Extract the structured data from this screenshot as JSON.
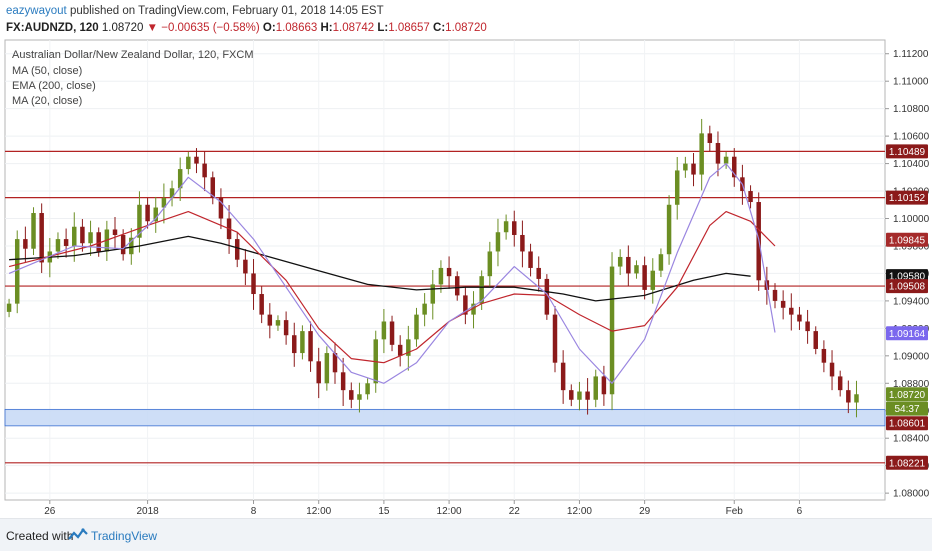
{
  "header": {
    "author": "eazywayout",
    "published_text": "published on TradingView.com, February 01, 2018 14:05 EST",
    "symbol": "FX:AUDNZD, 120",
    "last": "1.08720",
    "change_arrow": "▼",
    "change": "−0.00635 (−0.58%)",
    "open_label": "O:",
    "open": "1.08663",
    "high_label": "H:",
    "high": "1.08742",
    "low_label": "L:",
    "low": "1.08657",
    "close_label": "C:",
    "close": "1.08720"
  },
  "footer": {
    "created_with": "Created with",
    "brand": "TradingView",
    "logo_icon": "tradingview-logo-icon"
  },
  "colors": {
    "candle_up": "#6b8e23",
    "candle_down": "#8b1a1a",
    "resistance": "#b22222",
    "ma50": "#c0262d",
    "ema200": "#111111",
    "ma20": "#9a86e0",
    "zone": "#c5d8f6",
    "price_tag": "#8b1a1a"
  },
  "chart_data": {
    "type": "candlestick",
    "title": "Australian Dollar/New Zealand Dollar, 120, FXCM",
    "legend": [
      "MA (50, close)",
      "EMA (200, close)",
      "MA (20, close)"
    ],
    "ylim": [
      1.0795,
      1.113
    ],
    "y_ticks": [
      "1.11200",
      "1.11000",
      "1.10800",
      "1.10600",
      "1.10400",
      "1.10200",
      "1.10000",
      "1.09800",
      "1.09600",
      "1.09400",
      "1.09200",
      "1.09000",
      "1.08800",
      "1.08600",
      "1.08400",
      "1.08200",
      "1.08000"
    ],
    "x_ticks": [
      {
        "label": "26",
        "bar": 5
      },
      {
        "label": "2018",
        "bar": 17
      },
      {
        "label": "8",
        "bar": 30
      },
      {
        "label": "12:00",
        "bar": 38
      },
      {
        "label": "15",
        "bar": 46
      },
      {
        "label": "12:00",
        "bar": 54
      },
      {
        "label": "22",
        "bar": 62
      },
      {
        "label": "12:00",
        "bar": 70
      },
      {
        "label": "29",
        "bar": 78
      },
      {
        "label": "Feb",
        "bar": 89
      },
      {
        "label": "6",
        "bar": 97
      }
    ],
    "bars_total": 108,
    "resistance_levels": [
      1.10489,
      1.10152,
      1.09508,
      1.08221
    ],
    "support_zone": [
      1.0849,
      1.0861
    ],
    "price_tags": [
      {
        "label": "1.10489",
        "value": 1.10489,
        "color": "#8b1a1a"
      },
      {
        "label": "1.10152",
        "value": 1.10152,
        "color": "#8b1a1a"
      },
      {
        "label": "1.09845",
        "value": 1.09845,
        "color": "#a52a2a"
      },
      {
        "label": "1.09580",
        "value": 1.0958,
        "color": "#111111"
      },
      {
        "label": "1.09508",
        "value": 1.09508,
        "color": "#8b1a1a"
      },
      {
        "label": "1.09164",
        "value": 1.09164,
        "color": "#7b68ee"
      },
      {
        "label": "1.08720",
        "value": 1.0872,
        "color": "#6b8e23"
      },
      {
        "label": "54:37",
        "value": 1.08615,
        "color": "#6b8e23"
      },
      {
        "label": "1.08601",
        "value": 1.08509,
        "color": "#8b1a1a"
      },
      {
        "label": "1.08221",
        "value": 1.08221,
        "color": "#8b1a1a"
      }
    ],
    "closes": [
      1.0938,
      1.0985,
      1.0978,
      1.1004,
      1.0968,
      1.0976,
      1.0985,
      1.098,
      1.0994,
      1.0982,
      1.099,
      1.0976,
      1.0992,
      1.0988,
      1.0974,
      1.0986,
      1.101,
      1.0998,
      1.1008,
      1.1015,
      1.1022,
      1.1036,
      1.1045,
      1.104,
      1.103,
      1.1015,
      1.1,
      1.0985,
      1.097,
      1.096,
      1.0945,
      1.093,
      1.0922,
      1.0926,
      1.0915,
      1.0902,
      1.0918,
      1.0896,
      1.088,
      1.0902,
      1.0888,
      1.0875,
      1.0868,
      1.0872,
      1.088,
      1.0912,
      1.0925,
      1.0908,
      1.09,
      1.0912,
      1.093,
      1.0938,
      1.0952,
      1.0964,
      1.0958,
      1.0944,
      1.093,
      1.0938,
      1.0958,
      1.0976,
      1.099,
      1.0998,
      1.0988,
      1.0976,
      1.0964,
      1.0956,
      1.093,
      1.0895,
      1.0875,
      1.0868,
      1.0874,
      1.0868,
      1.0885,
      1.0872,
      1.0965,
      1.0972,
      1.096,
      1.0966,
      1.0948,
      1.0962,
      1.0974,
      1.101,
      1.1035,
      1.104,
      1.1032,
      1.1062,
      1.1055,
      1.104,
      1.1045,
      1.103,
      1.102,
      1.1012,
      1.0955,
      1.0948,
      1.094,
      1.0935,
      1.093,
      1.0925,
      1.0918,
      1.0905,
      1.0895,
      1.0885,
      1.0875,
      1.0866,
      1.0872
    ],
    "ma50": [
      [
        0,
        1.0965
      ],
      [
        10,
        1.098
      ],
      [
        17,
        1.0995
      ],
      [
        22,
        1.1005
      ],
      [
        28,
        1.099
      ],
      [
        34,
        1.0955
      ],
      [
        38,
        1.092
      ],
      [
        42,
        1.0898
      ],
      [
        46,
        1.0895
      ],
      [
        50,
        1.0905
      ],
      [
        54,
        1.0925
      ],
      [
        58,
        1.0938
      ],
      [
        62,
        1.0945
      ],
      [
        66,
        1.0944
      ],
      [
        70,
        1.093
      ],
      [
        74,
        1.0918
      ],
      [
        78,
        1.0922
      ],
      [
        82,
        1.095
      ],
      [
        86,
        1.0995
      ],
      [
        88,
        1.1005
      ],
      [
        91,
        1.0998
      ],
      [
        94,
        1.098
      ]
    ],
    "ema200": [
      [
        0,
        1.097
      ],
      [
        8,
        1.0973
      ],
      [
        16,
        1.098
      ],
      [
        22,
        1.0987
      ],
      [
        26,
        1.0982
      ],
      [
        32,
        1.0972
      ],
      [
        38,
        1.0962
      ],
      [
        44,
        1.0952
      ],
      [
        50,
        1.0948
      ],
      [
        56,
        1.095
      ],
      [
        62,
        1.095
      ],
      [
        68,
        1.0945
      ],
      [
        72,
        1.094
      ],
      [
        78,
        1.0944
      ],
      [
        84,
        1.0955
      ],
      [
        88,
        1.096
      ],
      [
        91,
        1.0958
      ]
    ],
    "ma20": [
      [
        0,
        1.096
      ],
      [
        8,
        1.098
      ],
      [
        14,
        1.0978
      ],
      [
        18,
        1.1
      ],
      [
        22,
        1.103
      ],
      [
        26,
        1.1012
      ],
      [
        30,
        1.0985
      ],
      [
        34,
        1.095
      ],
      [
        38,
        1.0915
      ],
      [
        42,
        1.0888
      ],
      [
        46,
        1.088
      ],
      [
        50,
        1.0895
      ],
      [
        54,
        1.0925
      ],
      [
        58,
        1.094
      ],
      [
        62,
        1.0965
      ],
      [
        66,
        1.0945
      ],
      [
        70,
        1.0905
      ],
      [
        74,
        1.088
      ],
      [
        78,
        1.0912
      ],
      [
        82,
        1.0975
      ],
      [
        86,
        1.103
      ],
      [
        88,
        1.104
      ],
      [
        90,
        1.1025
      ],
      [
        92,
        1.0985
      ],
      [
        94,
        1.0917
      ]
    ]
  }
}
